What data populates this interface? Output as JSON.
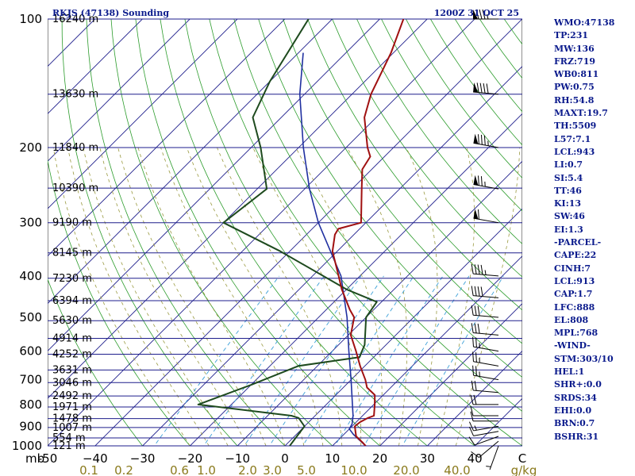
{
  "header": {
    "station": "RKJS (47138) Sounding",
    "time": "1200Z 31 OCT 25"
  },
  "parameters": [
    "WMO:47138",
    "TP:231",
    "MW:136",
    "FRZ:719",
    "WB0:811",
    "PW:0.75",
    "RH:54.8",
    "MAXT:19.7",
    "TH:5509",
    "L57:7.1",
    "LCL:943",
    "LI:0.7",
    "SI:5.4",
    "TT:46",
    "KI:13",
    "SW:46",
    "EI:1.3",
    "-PARCEL-",
    "CAPE:22",
    "CINH:7",
    "LCL:913",
    "CAP:1.7",
    "LFC:888",
    "EL:808",
    "MPL:768",
    "-WIND-",
    "STM:303/10",
    "HEL:1",
    "SHR+:0.0",
    "SRDS:34",
    "EHI:0.0",
    "BRN:0.7",
    "BSHR:31"
  ],
  "colors": {
    "isobar": "#1e1e8c",
    "dry_adiabat": "#2c9c2c",
    "moist_adiabat": "#9a9a40",
    "mixing_ratio": "#3ca0d8",
    "temperature": "#a01010",
    "dewpoint": "#1e4a1e",
    "parcel": "#2030a0",
    "barb": "#000000",
    "text": "#0a1a8c"
  },
  "chart_data": {
    "type": "line",
    "xlabel": "",
    "ylabel": "mb",
    "xunit": "C",
    "xlim": [
      -50,
      50
    ],
    "ylim": [
      1000,
      100
    ],
    "skew_deg": 45,
    "pressure_ticks": [
      {
        "p": 100,
        "label": "100"
      },
      {
        "p": 200,
        "label": "200"
      },
      {
        "p": 300,
        "label": "300"
      },
      {
        "p": 400,
        "label": "400"
      },
      {
        "p": 500,
        "label": "500"
      },
      {
        "p": 600,
        "label": "600"
      },
      {
        "p": 700,
        "label": "700"
      },
      {
        "p": 800,
        "label": "800"
      },
      {
        "p": 900,
        "label": "900"
      },
      {
        "p": 1000,
        "label": "1000"
      }
    ],
    "temperature_ticks": [
      {
        "t": -50,
        "label": "-50"
      },
      {
        "t": -40,
        "label": "−40"
      },
      {
        "t": -30,
        "label": "−30"
      },
      {
        "t": -20,
        "label": "−20"
      },
      {
        "t": -10,
        "label": "−10"
      },
      {
        "t": 0,
        "label": "0"
      },
      {
        "t": 10,
        "label": "10"
      },
      {
        "t": 20,
        "label": "20"
      },
      {
        "t": 30,
        "label": "30"
      },
      {
        "t": 40,
        "label": "40"
      },
      {
        "t": 50,
        "label": "C"
      }
    ],
    "mixing_ratio_ticks": [
      {
        "w": 0.1,
        "label": "0.1"
      },
      {
        "w": 0.2,
        "label": "0.2"
      },
      {
        "w": 0.6,
        "label": "0.6"
      },
      {
        "w": 1.0,
        "label": "1.0"
      },
      {
        "w": 2.0,
        "label": "2.0"
      },
      {
        "w": 3.0,
        "label": "3.0"
      },
      {
        "w": 5.0,
        "label": "5.0"
      },
      {
        "w": 10.0,
        "label": "10.0"
      },
      {
        "w": 20.0,
        "label": "20.0"
      },
      {
        "w": 40.0,
        "label": "40.0"
      },
      {
        "w": 80.0,
        "label": "g/kg"
      }
    ],
    "mixing_ratio_lines": [
      0.4,
      1,
      2,
      3,
      5,
      8,
      12,
      20
    ],
    "height_levels": [
      {
        "p": 1000,
        "label": "121 m"
      },
      {
        "p": 958,
        "label": "554 m"
      },
      {
        "p": 906,
        "label": "1007 m"
      },
      {
        "p": 863,
        "label": "1478 m"
      },
      {
        "p": 811,
        "label": "1971 m"
      },
      {
        "p": 764,
        "label": "2492 m"
      },
      {
        "p": 711,
        "label": "3046 m"
      },
      {
        "p": 664,
        "label": "3631 m"
      },
      {
        "p": 610,
        "label": "4252 m"
      },
      {
        "p": 560,
        "label": "4914 m"
      },
      {
        "p": 509,
        "label": "5630 m"
      },
      {
        "p": 457,
        "label": "6394 m"
      },
      {
        "p": 405,
        "label": "7230 m"
      },
      {
        "p": 353,
        "label": "8145 m"
      },
      {
        "p": 300,
        "label": "9190 m"
      },
      {
        "p": 249,
        "label": "10390 m"
      },
      {
        "p": 200,
        "label": "11840 m"
      },
      {
        "p": 150,
        "label": "13630 m"
      },
      {
        "p": 100,
        "label": "16240 m"
      }
    ],
    "series": [
      {
        "key": "temperature",
        "points": [
          [
            1000,
            17.0
          ],
          [
            980,
            15.5
          ],
          [
            950,
            13.0
          ],
          [
            925,
            11.8
          ],
          [
            900,
            10.6
          ],
          [
            880,
            10.8
          ],
          [
            860,
            11.6
          ],
          [
            850,
            12.4
          ],
          [
            800,
            10.2
          ],
          [
            760,
            8.2
          ],
          [
            730,
            5.0
          ],
          [
            700,
            3.0
          ],
          [
            650,
            -1.0
          ],
          [
            600,
            -5.0
          ],
          [
            550,
            -9.5
          ],
          [
            500,
            -12.5
          ],
          [
            480,
            -15.0
          ],
          [
            430,
            -21.0
          ],
          [
            400,
            -24.5
          ],
          [
            350,
            -31.0
          ],
          [
            320,
            -34.0
          ],
          [
            310,
            -34.5
          ],
          [
            300,
            -31.0
          ],
          [
            250,
            -38.0
          ],
          [
            225,
            -42.0
          ],
          [
            210,
            -43.0
          ],
          [
            200,
            -45.5
          ],
          [
            170,
            -52.5
          ],
          [
            150,
            -56.0
          ],
          [
            120,
            -60.5
          ],
          [
            100,
            -65.0
          ]
        ]
      },
      {
        "key": "dewpoint",
        "points": [
          [
            1000,
            1.0
          ],
          [
            950,
            0.5
          ],
          [
            900,
            0.0
          ],
          [
            860,
            -3.0
          ],
          [
            850,
            -5.0
          ],
          [
            800,
            -27.0
          ],
          [
            720,
            -20.0
          ],
          [
            650,
            -14.0
          ],
          [
            620,
            -3.0
          ],
          [
            580,
            -4.5
          ],
          [
            500,
            -10.0
          ],
          [
            460,
            -11.0
          ],
          [
            430,
            -20.0
          ],
          [
            350,
            -42.0
          ],
          [
            300,
            -60.0
          ],
          [
            250,
            -58.0
          ],
          [
            200,
            -68.0
          ],
          [
            170,
            -76.0
          ],
          [
            140,
            -80.0
          ],
          [
            100,
            -85.0
          ]
        ]
      },
      {
        "key": "parcel",
        "points": [
          [
            1000,
            17.0
          ],
          [
            940,
            12.0
          ],
          [
            913,
            10.0
          ],
          [
            888,
            9.5
          ],
          [
            850,
            8.0
          ],
          [
            800,
            5.5
          ],
          [
            700,
            0.0
          ],
          [
            600,
            -6.5
          ],
          [
            500,
            -14.0
          ],
          [
            400,
            -24.0
          ],
          [
            300,
            -40.0
          ],
          [
            250,
            -49.0
          ],
          [
            200,
            -59.0
          ],
          [
            150,
            -71.0
          ],
          [
            120,
            -79.0
          ]
        ]
      }
    ],
    "wind_barbs": [
      {
        "p": 1000,
        "dir": 200,
        "spd": 5
      },
      {
        "p": 975,
        "dir": 230,
        "spd": 10
      },
      {
        "p": 950,
        "dir": 250,
        "spd": 10
      },
      {
        "p": 925,
        "dir": 260,
        "spd": 10
      },
      {
        "p": 900,
        "dir": 260,
        "spd": 15
      },
      {
        "p": 875,
        "dir": 270,
        "spd": 10
      },
      {
        "p": 850,
        "dir": 270,
        "spd": 10
      },
      {
        "p": 800,
        "dir": 270,
        "spd": 20
      },
      {
        "p": 750,
        "dir": 275,
        "spd": 20
      },
      {
        "p": 700,
        "dir": 280,
        "spd": 25
      },
      {
        "p": 650,
        "dir": 280,
        "spd": 25
      },
      {
        "p": 600,
        "dir": 280,
        "spd": 25
      },
      {
        "p": 550,
        "dir": 275,
        "spd": 30
      },
      {
        "p": 500,
        "dir": 275,
        "spd": 30
      },
      {
        "p": 450,
        "dir": 275,
        "spd": 40
      },
      {
        "p": 400,
        "dir": 275,
        "spd": 45
      },
      {
        "p": 300,
        "dir": 280,
        "spd": 60
      },
      {
        "p": 250,
        "dir": 280,
        "spd": 75
      },
      {
        "p": 200,
        "dir": 280,
        "spd": 85
      },
      {
        "p": 150,
        "dir": 275,
        "spd": 90
      },
      {
        "p": 100,
        "dir": 270,
        "spd": 85
      }
    ]
  }
}
